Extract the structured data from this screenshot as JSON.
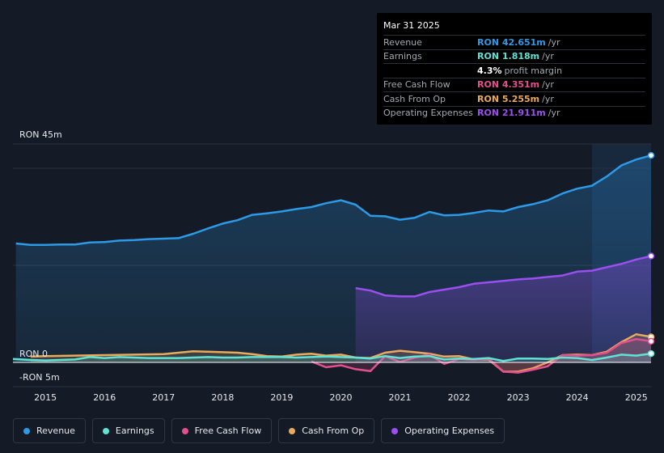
{
  "tooltip": {
    "date": "Mar 31 2025",
    "rows": [
      {
        "label": "Revenue",
        "value": "RON 42.651m",
        "unit": "/yr",
        "color": "#2d9ae8"
      },
      {
        "label": "Earnings",
        "value": "RON 1.818m",
        "unit": "/yr",
        "color": "#5fe3d6"
      },
      {
        "label": "",
        "value": "4.3%",
        "unit": "profit margin",
        "color": "#ffffff"
      },
      {
        "label": "Free Cash Flow",
        "value": "RON 4.351m",
        "unit": "/yr",
        "color": "#e3508f"
      },
      {
        "label": "Cash From Op",
        "value": "RON 5.255m",
        "unit": "/yr",
        "color": "#eaaa5c"
      },
      {
        "label": "Operating Expenses",
        "value": "RON 21.911m",
        "unit": "/yr",
        "color": "#9b4ff0"
      }
    ]
  },
  "legend": [
    {
      "label": "Revenue",
      "color": "#2d9ae8"
    },
    {
      "label": "Earnings",
      "color": "#5fe3d6"
    },
    {
      "label": "Free Cash Flow",
      "color": "#e3508f"
    },
    {
      "label": "Cash From Op",
      "color": "#eaaa5c"
    },
    {
      "label": "Operating Expenses",
      "color": "#9b4ff0"
    }
  ],
  "chart_data": {
    "type": "line",
    "title": "",
    "ylabel_top": "RON 45m",
    "ylabel_zero": "RON 0",
    "ylabel_bottom": "-RON 5m",
    "ylim": [
      -5,
      45
    ],
    "xlim": [
      2014.45,
      2025.25
    ],
    "forecast_start": 2024.25,
    "x_ticks": [
      "2015",
      "2016",
      "2017",
      "2018",
      "2019",
      "2020",
      "2021",
      "2022",
      "2023",
      "2024",
      "2025"
    ],
    "series": [
      {
        "name": "Revenue",
        "color": "#2d9ae8",
        "fill": true,
        "end_marker": true,
        "x": [
          2014.5,
          2014.75,
          2015.0,
          2015.25,
          2015.5,
          2015.75,
          2016.0,
          2016.25,
          2016.5,
          2016.75,
          2017.0,
          2017.25,
          2017.5,
          2017.75,
          2018.0,
          2018.25,
          2018.5,
          2018.75,
          2019.0,
          2019.25,
          2019.5,
          2019.75,
          2020.0,
          2020.25,
          2020.5,
          2020.75,
          2021.0,
          2021.25,
          2021.5,
          2021.75,
          2022.0,
          2022.25,
          2022.5,
          2022.75,
          2023.0,
          2023.25,
          2023.5,
          2023.75,
          2024.0,
          2024.25,
          2024.5,
          2024.75,
          2025.0,
          2025.25
        ],
        "values": [
          24.5,
          24.2,
          24.2,
          24.3,
          24.3,
          24.7,
          24.8,
          25.1,
          25.2,
          25.4,
          25.5,
          25.6,
          26.5,
          27.6,
          28.6,
          29.3,
          30.4,
          30.7,
          31.1,
          31.6,
          32.0,
          32.8,
          33.4,
          32.5,
          30.2,
          30.1,
          29.4,
          29.8,
          31.0,
          30.3,
          30.4,
          30.8,
          31.3,
          31.1,
          32.0,
          32.6,
          33.4,
          34.8,
          35.8,
          36.4,
          38.3,
          40.6,
          41.8,
          42.651
        ]
      },
      {
        "name": "Operating Expenses",
        "color": "#9b4ff0",
        "fill": true,
        "end_marker": true,
        "x": [
          2020.25,
          2020.5,
          2020.75,
          2021.0,
          2021.25,
          2021.5,
          2021.75,
          2022.0,
          2022.25,
          2022.5,
          2022.75,
          2023.0,
          2023.25,
          2023.5,
          2023.75,
          2024.0,
          2024.25,
          2024.5,
          2024.75,
          2025.0,
          2025.25
        ],
        "values": [
          15.3,
          14.8,
          13.8,
          13.6,
          13.6,
          14.5,
          15.0,
          15.5,
          16.2,
          16.5,
          16.8,
          17.1,
          17.3,
          17.6,
          17.9,
          18.7,
          18.9,
          19.6,
          20.3,
          21.2,
          21.911
        ]
      },
      {
        "name": "Cash From Op",
        "color": "#eaaa5c",
        "fill": true,
        "end_marker": true,
        "x": [
          2014.45,
          2014.75,
          2015.0,
          2015.5,
          2016.0,
          2016.5,
          2017.0,
          2017.25,
          2017.5,
          2017.75,
          2018.0,
          2018.25,
          2018.5,
          2018.75,
          2019.0,
          2019.25,
          2019.5,
          2019.75,
          2020.0,
          2020.25,
          2020.5,
          2020.75,
          2021.0,
          2021.25,
          2021.5,
          2021.75,
          2022.0,
          2022.25,
          2022.5,
          2022.75,
          2023.0,
          2023.25,
          2023.5,
          2023.75,
          2024.0,
          2024.25,
          2024.5,
          2024.75,
          2025.0,
          2025.25
        ],
        "values": [
          null,
          1.2,
          1.3,
          1.4,
          1.5,
          1.6,
          1.7,
          2.0,
          2.3,
          2.2,
          2.1,
          2.0,
          1.7,
          1.3,
          1.2,
          1.6,
          1.8,
          1.4,
          1.6,
          1.0,
          0.9,
          2.0,
          2.4,
          2.1,
          1.8,
          1.2,
          1.3,
          0.6,
          0.6,
          -1.9,
          -1.9,
          -1.2,
          0.0,
          1.5,
          1.6,
          1.5,
          2.2,
          4.2,
          5.8,
          5.255
        ]
      },
      {
        "name": "Free Cash Flow",
        "color": "#e3508f",
        "fill": true,
        "end_marker": true,
        "x": [
          2019.5,
          2019.75,
          2020.0,
          2020.25,
          2020.5,
          2020.75,
          2021.0,
          2021.25,
          2021.5,
          2021.75,
          2022.0,
          2022.25,
          2022.5,
          2022.75,
          2023.0,
          2023.25,
          2023.5,
          2023.75,
          2024.0,
          2024.25,
          2024.5,
          2024.75,
          2025.0,
          2025.25
        ],
        "values": [
          0.2,
          -1.0,
          -0.6,
          -1.4,
          -1.8,
          1.3,
          0.1,
          1.0,
          1.6,
          -0.3,
          0.7,
          0.5,
          0.8,
          -1.9,
          -2.1,
          -1.5,
          -0.8,
          1.5,
          1.4,
          1.5,
          2.0,
          4.0,
          4.8,
          4.351
        ]
      },
      {
        "name": "Earnings",
        "color": "#5fe3d6",
        "fill": true,
        "end_marker": true,
        "x": [
          2014.45,
          2014.75,
          2015.0,
          2015.25,
          2015.5,
          2015.75,
          2016.0,
          2016.25,
          2016.5,
          2016.75,
          2017.0,
          2017.25,
          2017.5,
          2017.75,
          2018.0,
          2018.25,
          2018.5,
          2018.75,
          2019.0,
          2019.25,
          2019.5,
          2019.75,
          2020.0,
          2020.25,
          2020.5,
          2020.75,
          2021.0,
          2021.25,
          2021.5,
          2021.75,
          2022.0,
          2022.25,
          2022.5,
          2022.75,
          2023.0,
          2023.25,
          2023.5,
          2023.75,
          2024.0,
          2024.25,
          2024.5,
          2024.75,
          2025.0,
          2025.25
        ],
        "values": [
          0.7,
          0.5,
          0.4,
          0.5,
          0.6,
          1.1,
          0.9,
          1.1,
          1.0,
          0.9,
          0.9,
          0.9,
          1.0,
          1.1,
          1.0,
          1.0,
          1.1,
          1.1,
          1.1,
          1.0,
          1.1,
          1.2,
          1.1,
          1.0,
          0.8,
          1.3,
          0.9,
          1.2,
          1.3,
          0.6,
          0.8,
          0.7,
          0.9,
          0.3,
          0.8,
          0.8,
          0.7,
          1.0,
          0.9,
          0.5,
          1.0,
          1.6,
          1.4,
          1.818
        ]
      }
    ]
  }
}
